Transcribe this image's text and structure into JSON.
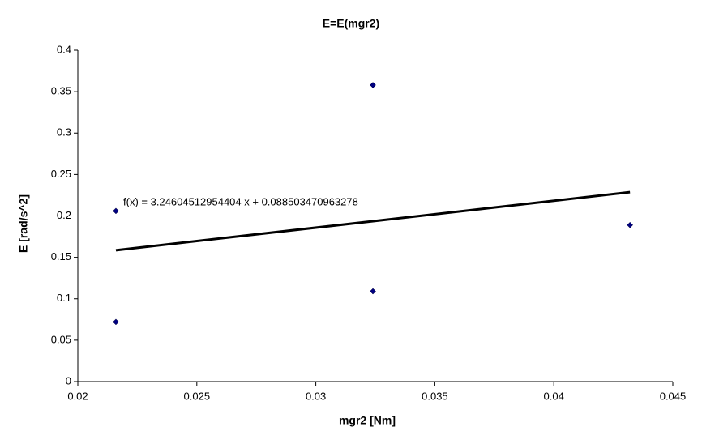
{
  "chart_data": {
    "type": "scatter",
    "title": "E=E(mgr2)",
    "xlabel": "mgr2 [Nm]",
    "ylabel": "E [rad/s^2]",
    "series": [
      {
        "name": "E",
        "color": "#000080",
        "x": [
          0.0216,
          0.0216,
          0.0324,
          0.0324,
          0.0432
        ],
        "values": [
          0.206,
          0.072,
          0.358,
          0.109,
          0.189
        ]
      }
    ],
    "trendline": {
      "color": "#000000",
      "x": [
        0.0216,
        0.0432
      ],
      "values": [
        0.1586,
        0.2287
      ]
    },
    "annotation": "f(x) = 3.24604512954404 x + 0.088503470963278",
    "xlim": [
      0.02,
      0.045
    ],
    "xticks": [
      0.02,
      0.025,
      0.03,
      0.035,
      0.04,
      0.045
    ],
    "ylim": [
      0,
      0.4
    ],
    "yticks": [
      0,
      0.05,
      0.1,
      0.15,
      0.2,
      0.25,
      0.3,
      0.35,
      0.4
    ],
    "grid": false
  }
}
